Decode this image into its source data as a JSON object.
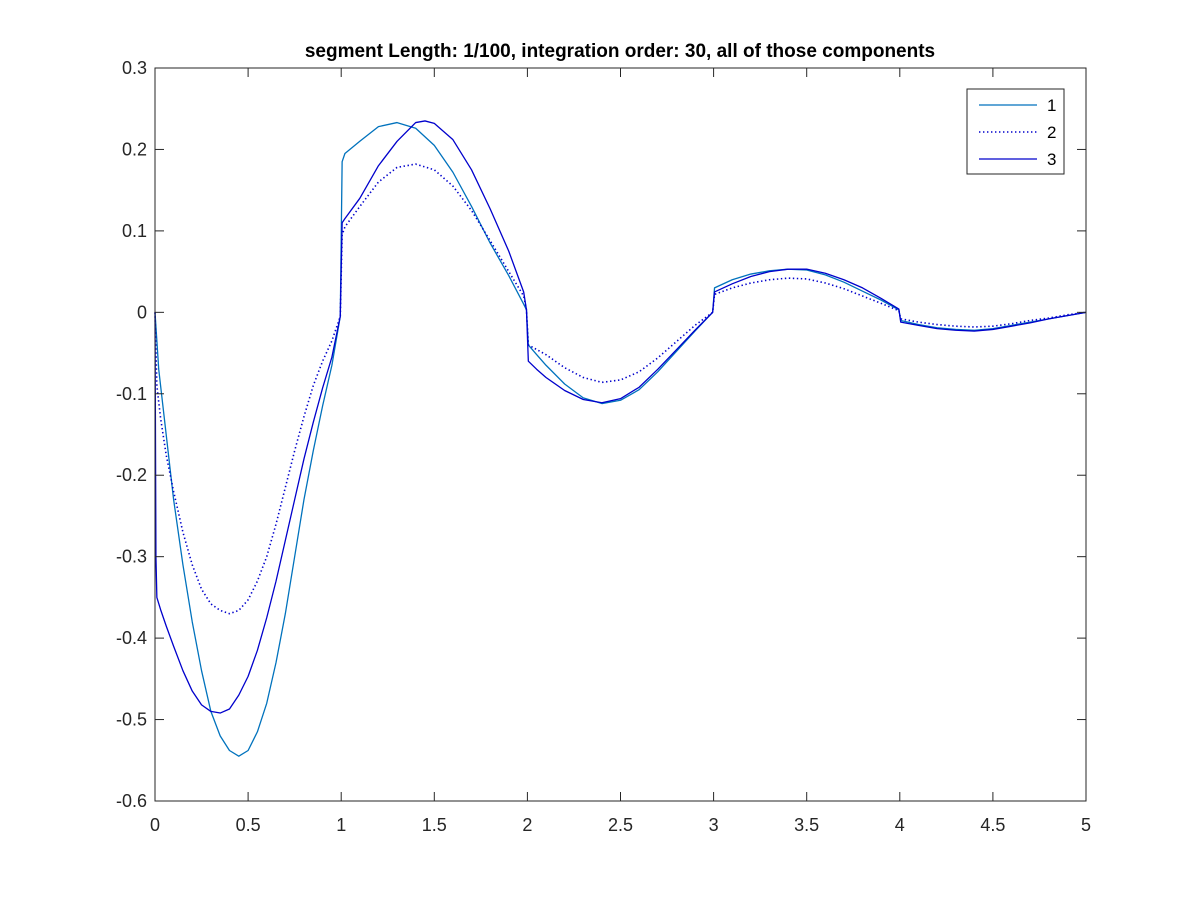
{
  "chart_data": {
    "type": "line",
    "title": "segment Length: 1/100, integration order: 30, all of those components",
    "xlabel": "",
    "ylabel": "",
    "xlim": [
      0,
      5
    ],
    "ylim": [
      -0.6,
      0.3
    ],
    "xticks": [
      0,
      0.5,
      1,
      1.5,
      2,
      2.5,
      3,
      3.5,
      4,
      4.5,
      5
    ],
    "xtick_labels": [
      "0",
      "0.5",
      "1",
      "1.5",
      "2",
      "2.5",
      "3",
      "3.5",
      "4",
      "4.5",
      "5"
    ],
    "yticks": [
      -0.6,
      -0.5,
      -0.4,
      -0.3,
      -0.2,
      -0.1,
      0,
      0.1,
      0.2,
      0.3
    ],
    "ytick_labels": [
      "-0.6",
      "-0.5",
      "-0.4",
      "-0.3",
      "-0.2",
      "-0.1",
      "0",
      "0.1",
      "0.2",
      "0.3"
    ],
    "grid": false,
    "legend_position": "top-right",
    "series": [
      {
        "name": "1",
        "color": "#0072BD",
        "style": "solid",
        "points": [
          [
            0,
            0
          ],
          [
            0.02,
            -0.07
          ],
          [
            0.05,
            -0.13
          ],
          [
            0.1,
            -0.23
          ],
          [
            0.15,
            -0.31
          ],
          [
            0.2,
            -0.38
          ],
          [
            0.25,
            -0.44
          ],
          [
            0.3,
            -0.49
          ],
          [
            0.35,
            -0.52
          ],
          [
            0.4,
            -0.538
          ],
          [
            0.45,
            -0.545
          ],
          [
            0.5,
            -0.538
          ],
          [
            0.55,
            -0.515
          ],
          [
            0.6,
            -0.48
          ],
          [
            0.65,
            -0.43
          ],
          [
            0.7,
            -0.37
          ],
          [
            0.75,
            -0.3
          ],
          [
            0.8,
            -0.23
          ],
          [
            0.85,
            -0.17
          ],
          [
            0.9,
            -0.115
          ],
          [
            0.95,
            -0.065
          ],
          [
            0.995,
            -0.005
          ],
          [
            1.005,
            0.185
          ],
          [
            1.02,
            0.195
          ],
          [
            1.1,
            0.21
          ],
          [
            1.2,
            0.228
          ],
          [
            1.3,
            0.233
          ],
          [
            1.4,
            0.226
          ],
          [
            1.5,
            0.205
          ],
          [
            1.6,
            0.172
          ],
          [
            1.7,
            0.13
          ],
          [
            1.8,
            0.085
          ],
          [
            1.9,
            0.045
          ],
          [
            1.98,
            0.01
          ],
          [
            1.995,
            0.003
          ],
          [
            2.005,
            -0.04
          ],
          [
            2.05,
            -0.052
          ],
          [
            2.1,
            -0.065
          ],
          [
            2.2,
            -0.088
          ],
          [
            2.3,
            -0.105
          ],
          [
            2.4,
            -0.112
          ],
          [
            2.5,
            -0.108
          ],
          [
            2.6,
            -0.095
          ],
          [
            2.7,
            -0.073
          ],
          [
            2.8,
            -0.048
          ],
          [
            2.9,
            -0.023
          ],
          [
            2.995,
            0
          ],
          [
            3.005,
            0.03
          ],
          [
            3.1,
            0.04
          ],
          [
            3.2,
            0.047
          ],
          [
            3.3,
            0.051
          ],
          [
            3.4,
            0.053
          ],
          [
            3.5,
            0.052
          ],
          [
            3.6,
            0.046
          ],
          [
            3.7,
            0.037
          ],
          [
            3.8,
            0.026
          ],
          [
            3.9,
            0.015
          ],
          [
            3.995,
            0.003
          ],
          [
            4.005,
            -0.01
          ],
          [
            4.1,
            -0.015
          ],
          [
            4.2,
            -0.019
          ],
          [
            4.3,
            -0.021
          ],
          [
            4.4,
            -0.022
          ],
          [
            4.5,
            -0.02
          ],
          [
            4.6,
            -0.016
          ],
          [
            4.7,
            -0.012
          ],
          [
            4.8,
            -0.008
          ],
          [
            4.9,
            -0.004
          ],
          [
            5,
            0
          ]
        ]
      },
      {
        "name": "2",
        "color": "#0000CC",
        "style": "dotted",
        "points": [
          [
            0,
            0
          ],
          [
            0.01,
            -0.09
          ],
          [
            0.03,
            -0.13
          ],
          [
            0.06,
            -0.175
          ],
          [
            0.1,
            -0.22
          ],
          [
            0.15,
            -0.27
          ],
          [
            0.2,
            -0.31
          ],
          [
            0.25,
            -0.34
          ],
          [
            0.3,
            -0.358
          ],
          [
            0.35,
            -0.366
          ],
          [
            0.4,
            -0.37
          ],
          [
            0.45,
            -0.366
          ],
          [
            0.5,
            -0.353
          ],
          [
            0.55,
            -0.33
          ],
          [
            0.6,
            -0.3
          ],
          [
            0.65,
            -0.26
          ],
          [
            0.7,
            -0.215
          ],
          [
            0.75,
            -0.17
          ],
          [
            0.8,
            -0.128
          ],
          [
            0.85,
            -0.09
          ],
          [
            0.9,
            -0.06
          ],
          [
            0.95,
            -0.035
          ],
          [
            0.995,
            -0.005
          ],
          [
            1.005,
            0.095
          ],
          [
            1.02,
            0.105
          ],
          [
            1.1,
            0.13
          ],
          [
            1.2,
            0.16
          ],
          [
            1.3,
            0.178
          ],
          [
            1.4,
            0.182
          ],
          [
            1.5,
            0.175
          ],
          [
            1.6,
            0.155
          ],
          [
            1.7,
            0.125
          ],
          [
            1.8,
            0.088
          ],
          [
            1.9,
            0.05
          ],
          [
            1.98,
            0.02
          ],
          [
            1.995,
            0.003
          ],
          [
            2.005,
            -0.04
          ],
          [
            2.1,
            -0.052
          ],
          [
            2.2,
            -0.068
          ],
          [
            2.3,
            -0.08
          ],
          [
            2.4,
            -0.086
          ],
          [
            2.5,
            -0.083
          ],
          [
            2.6,
            -0.073
          ],
          [
            2.7,
            -0.056
          ],
          [
            2.8,
            -0.036
          ],
          [
            2.9,
            -0.016
          ],
          [
            2.995,
            0
          ],
          [
            3.005,
            0.022
          ],
          [
            3.1,
            0.03
          ],
          [
            3.2,
            0.036
          ],
          [
            3.3,
            0.04
          ],
          [
            3.4,
            0.042
          ],
          [
            3.5,
            0.041
          ],
          [
            3.6,
            0.036
          ],
          [
            3.7,
            0.029
          ],
          [
            3.8,
            0.02
          ],
          [
            3.9,
            0.011
          ],
          [
            3.995,
            0.002
          ],
          [
            4.005,
            -0.008
          ],
          [
            4.1,
            -0.012
          ],
          [
            4.2,
            -0.015
          ],
          [
            4.3,
            -0.017
          ],
          [
            4.4,
            -0.018
          ],
          [
            4.5,
            -0.017
          ],
          [
            4.6,
            -0.014
          ],
          [
            4.7,
            -0.01
          ],
          [
            4.8,
            -0.007
          ],
          [
            4.9,
            -0.003
          ],
          [
            5,
            0
          ]
        ]
      },
      {
        "name": "3",
        "color": "#0000CC",
        "style": "solid",
        "points": [
          [
            0,
            0
          ],
          [
            0.005,
            -0.3
          ],
          [
            0.01,
            -0.35
          ],
          [
            0.03,
            -0.365
          ],
          [
            0.06,
            -0.385
          ],
          [
            0.1,
            -0.41
          ],
          [
            0.15,
            -0.44
          ],
          [
            0.2,
            -0.465
          ],
          [
            0.25,
            -0.482
          ],
          [
            0.3,
            -0.49
          ],
          [
            0.35,
            -0.492
          ],
          [
            0.4,
            -0.487
          ],
          [
            0.45,
            -0.47
          ],
          [
            0.5,
            -0.447
          ],
          [
            0.55,
            -0.415
          ],
          [
            0.6,
            -0.375
          ],
          [
            0.65,
            -0.33
          ],
          [
            0.7,
            -0.28
          ],
          [
            0.75,
            -0.23
          ],
          [
            0.8,
            -0.18
          ],
          [
            0.85,
            -0.135
          ],
          [
            0.9,
            -0.093
          ],
          [
            0.95,
            -0.055
          ],
          [
            0.995,
            -0.005
          ],
          [
            1.005,
            0.11
          ],
          [
            1.02,
            0.115
          ],
          [
            1.1,
            0.14
          ],
          [
            1.2,
            0.18
          ],
          [
            1.3,
            0.21
          ],
          [
            1.4,
            0.233
          ],
          [
            1.45,
            0.235
          ],
          [
            1.5,
            0.232
          ],
          [
            1.6,
            0.212
          ],
          [
            1.7,
            0.175
          ],
          [
            1.8,
            0.127
          ],
          [
            1.9,
            0.075
          ],
          [
            1.98,
            0.025
          ],
          [
            1.995,
            0.003
          ],
          [
            2.005,
            -0.06
          ],
          [
            2.05,
            -0.07
          ],
          [
            2.1,
            -0.08
          ],
          [
            2.2,
            -0.096
          ],
          [
            2.3,
            -0.107
          ],
          [
            2.4,
            -0.111
          ],
          [
            2.5,
            -0.106
          ],
          [
            2.6,
            -0.092
          ],
          [
            2.7,
            -0.07
          ],
          [
            2.8,
            -0.046
          ],
          [
            2.9,
            -0.022
          ],
          [
            2.995,
            0
          ],
          [
            3.005,
            0.025
          ],
          [
            3.1,
            0.035
          ],
          [
            3.2,
            0.044
          ],
          [
            3.3,
            0.05
          ],
          [
            3.4,
            0.053
          ],
          [
            3.5,
            0.053
          ],
          [
            3.6,
            0.048
          ],
          [
            3.7,
            0.04
          ],
          [
            3.8,
            0.03
          ],
          [
            3.9,
            0.017
          ],
          [
            3.995,
            0.004
          ],
          [
            4.005,
            -0.012
          ],
          [
            4.1,
            -0.016
          ],
          [
            4.2,
            -0.02
          ],
          [
            4.3,
            -0.022
          ],
          [
            4.4,
            -0.023
          ],
          [
            4.5,
            -0.021
          ],
          [
            4.6,
            -0.017
          ],
          [
            4.7,
            -0.013
          ],
          [
            4.8,
            -0.008
          ],
          [
            4.9,
            -0.004
          ],
          [
            5,
            0
          ]
        ]
      }
    ]
  }
}
